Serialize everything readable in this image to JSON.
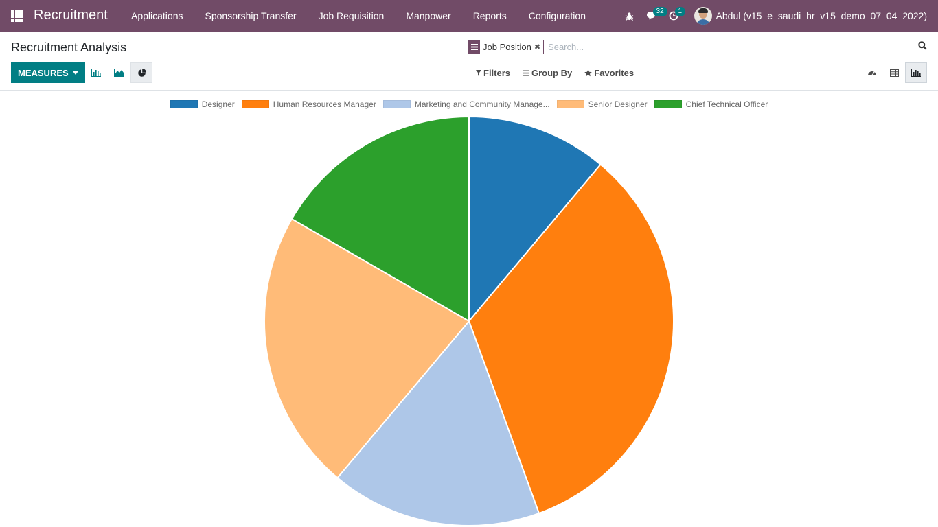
{
  "navbar": {
    "brand": "Recruitment",
    "menu": [
      "Applications",
      "Sponsorship Transfer",
      "Job Requisition",
      "Manpower",
      "Reports",
      "Configuration"
    ],
    "messages_count": "32",
    "activities_count": "1",
    "user_name": "Abdul (v15_e_saudi_hr_v15_demo_07_04_2022)",
    "color": "#714b67"
  },
  "control_panel": {
    "title": "Recruitment Analysis",
    "measures_label": "MEASURES",
    "facet_label": "Job Position",
    "search_placeholder": "Search...",
    "filters_label": "Filters",
    "group_by_label": "Group By",
    "favorites_label": "Favorites",
    "accent_color": "#017e84"
  },
  "chart_data": {
    "type": "pie",
    "categories": [
      "Designer",
      "Human Resources Manager",
      "Marketing and Community Manage...",
      "Senior Designer",
      "Chief Technical Officer"
    ],
    "values": [
      1,
      3,
      1.5,
      2,
      1.5
    ],
    "colors": [
      "#1f77b4",
      "#ff7f0e",
      "#aec7e8",
      "#ffbb78",
      "#2ca02c"
    ],
    "legend_position": "top"
  }
}
